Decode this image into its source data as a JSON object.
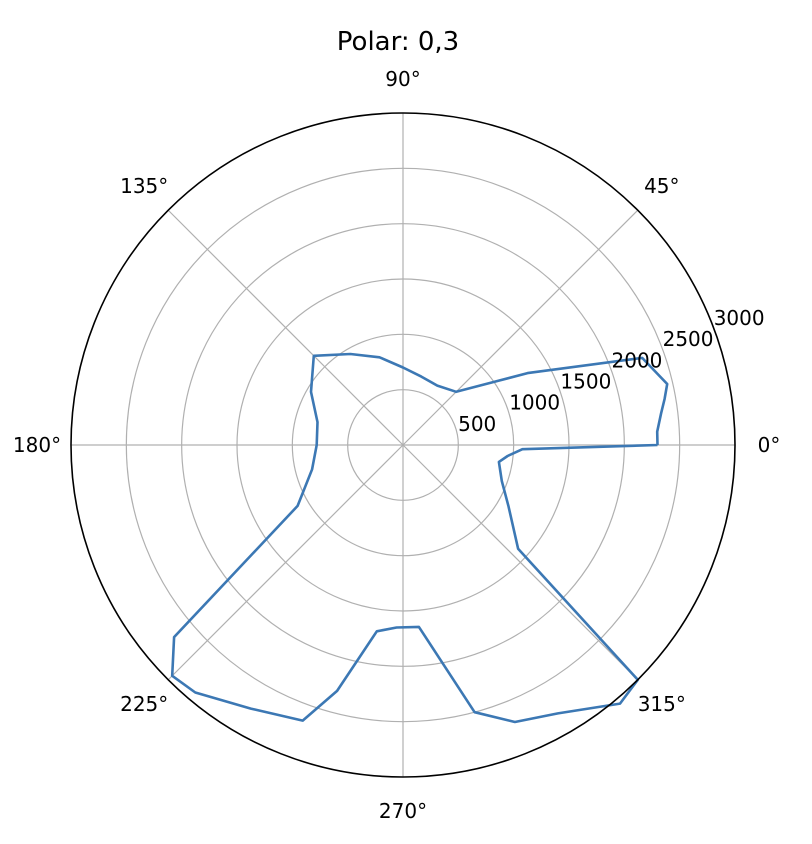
{
  "chart_data": {
    "type": "line",
    "projection": "polar",
    "title": "Polar: 0,3",
    "theta_unit": "degrees",
    "theta_ticks": [
      "0°",
      "45°",
      "90°",
      "135°",
      "180°",
      "225°",
      "270°",
      "315°"
    ],
    "theta_tick_values": [
      0,
      45,
      90,
      135,
      180,
      225,
      270,
      315
    ],
    "r_ticks": [
      "500",
      "1000",
      "1500",
      "2000",
      "2500",
      "3000"
    ],
    "r_tick_values": [
      500,
      1000,
      1500,
      2000,
      2500,
      3000
    ],
    "rlim": [
      0,
      3000
    ],
    "grid": true,
    "series": [
      {
        "color": "#3c78b4",
        "theta": [
          0,
          3,
          7,
          10,
          13,
          20,
          30,
          45,
          60,
          75,
          90,
          105,
          120,
          135,
          150,
          165,
          180,
          195,
          210,
          220,
          225,
          230,
          240,
          250,
          255,
          262,
          268,
          275,
          285,
          292,
          300,
          310,
          315,
          318,
          330,
          340,
          350,
          354,
          358,
          360
        ],
        "r": [
          2300,
          2300,
          2350,
          2400,
          2450,
          2300,
          1300,
          680,
          620,
          640,
          700,
          820,
          950,
          1140,
          960,
          800,
          780,
          850,
          1100,
          2700,
          2950,
          2920,
          2750,
          2650,
          2300,
          1700,
          1650,
          1650,
          2500,
          2700,
          2800,
          3050,
          3000,
          1400,
          1100,
          950,
          880,
          950,
          1080,
          2300
        ]
      }
    ]
  }
}
